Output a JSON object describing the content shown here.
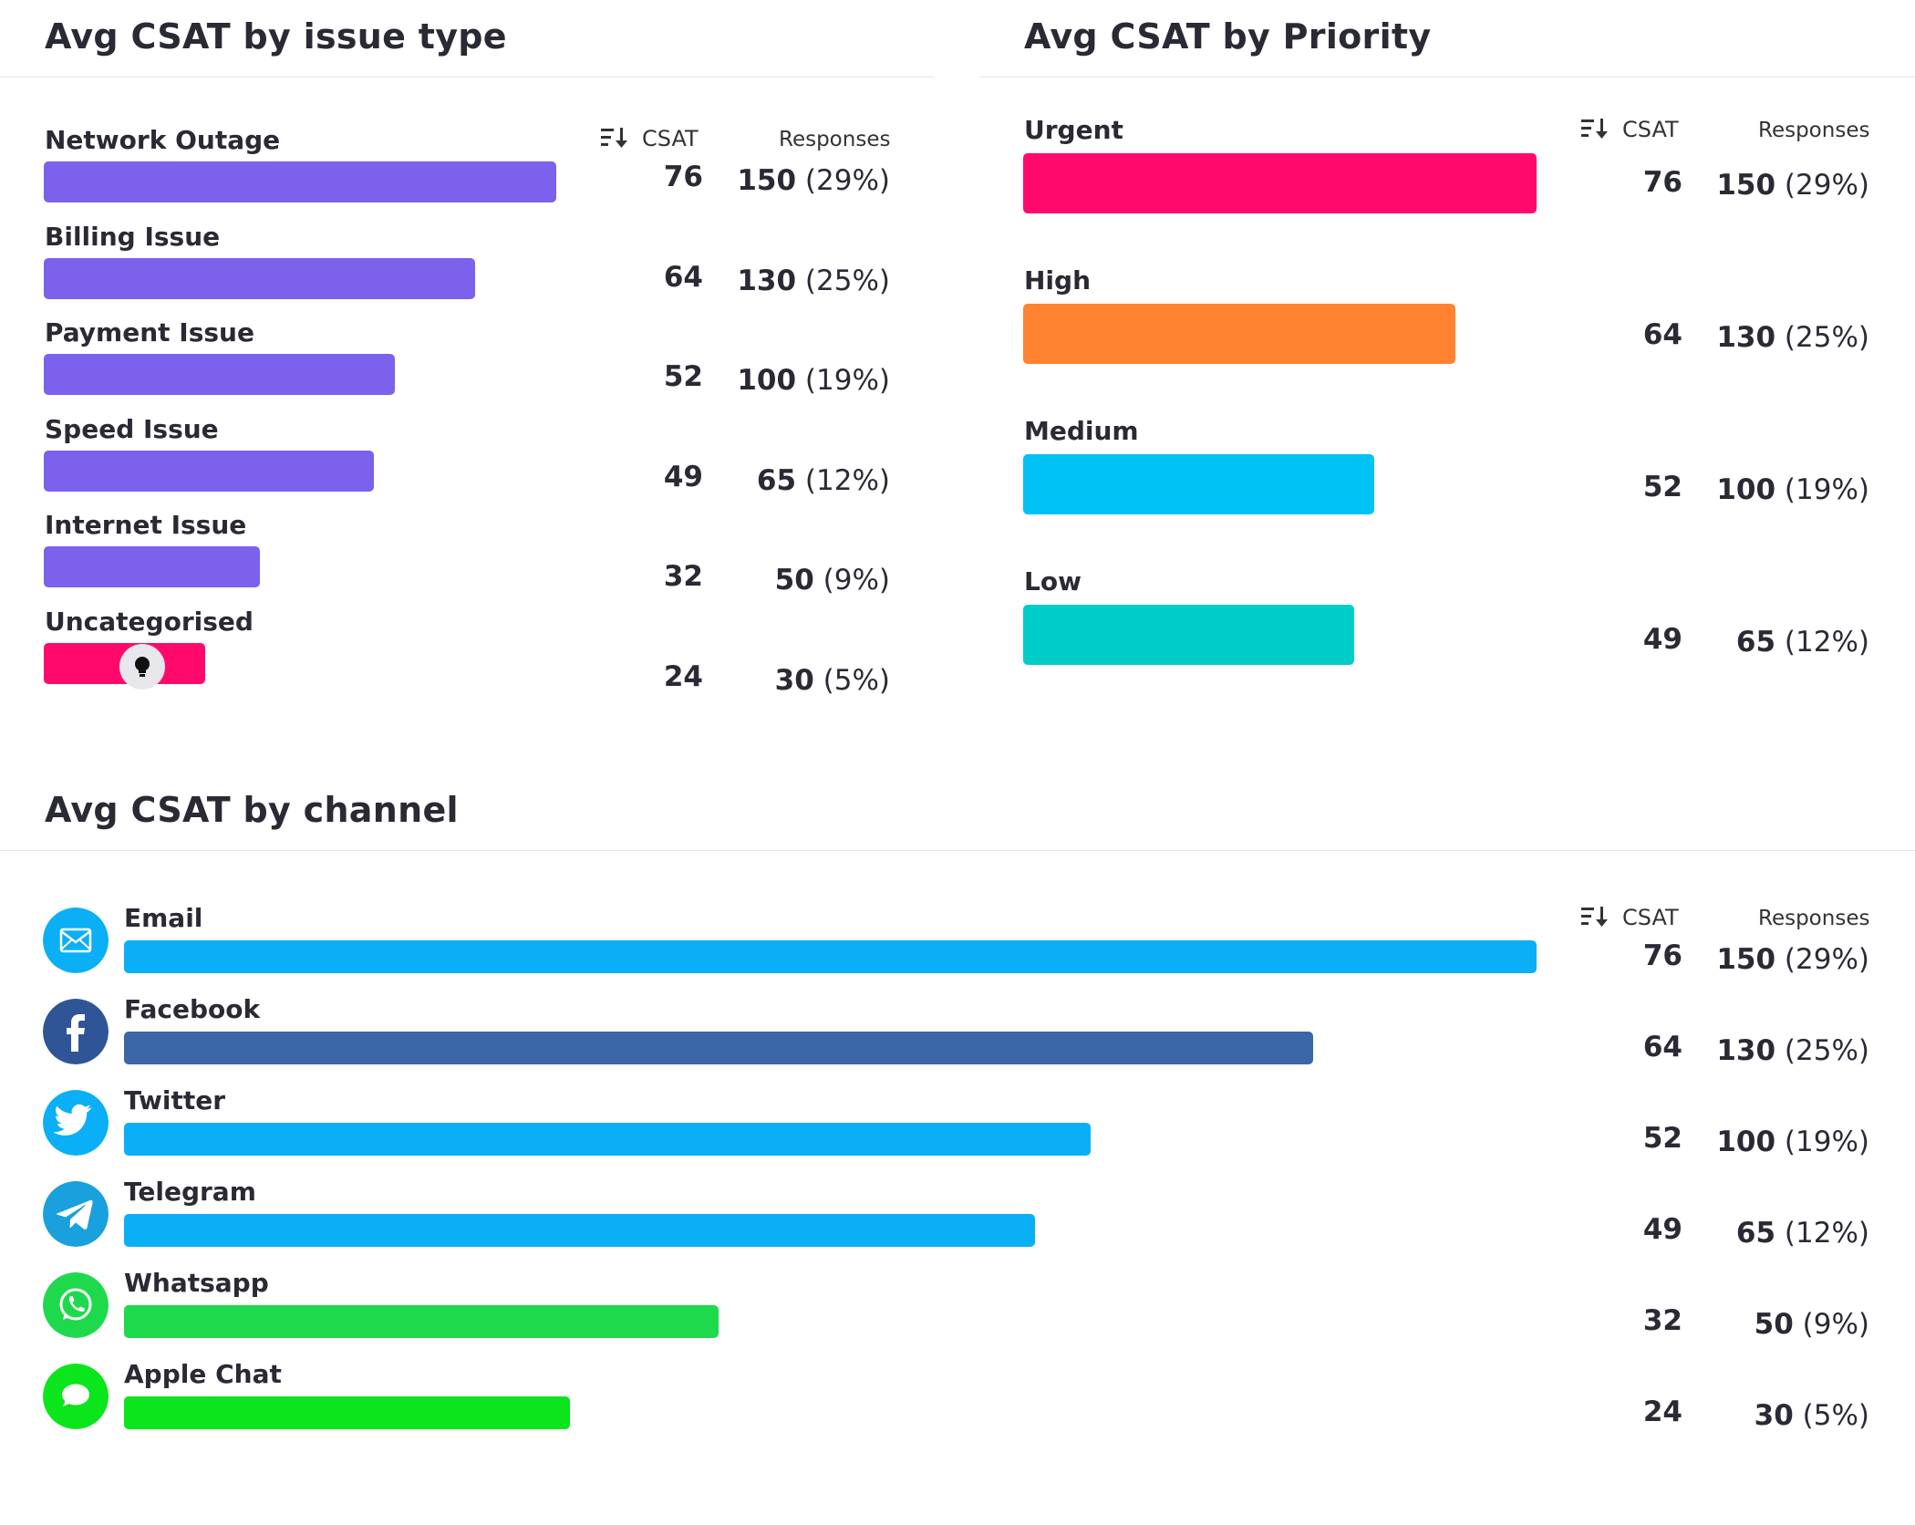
{
  "issue_panel": {
    "title": "Avg CSAT by issue type",
    "csat_header": "CSAT",
    "responses_header": "Responses",
    "max_csat": 76,
    "rows": [
      {
        "label": "Network Outage",
        "csat": "76",
        "count": "150",
        "pct": "(29%)",
        "color": "#7B61EC"
      },
      {
        "label": "Billing Issue",
        "csat": "64",
        "count": "130",
        "pct": "(25%)",
        "color": "#7B61EC"
      },
      {
        "label": "Payment Issue",
        "csat": "52",
        "count": "100",
        "pct": "(19%)",
        "color": "#7B61EC"
      },
      {
        "label": "Speed Issue",
        "csat": "49",
        "count": "65",
        "pct": "(12%)",
        "color": "#7B61EC"
      },
      {
        "label": "Internet Issue",
        "csat": "32",
        "count": "50",
        "pct": "(9%)",
        "color": "#7B61EC"
      },
      {
        "label": "Uncategorised",
        "csat": "24",
        "count": "30",
        "pct": "(5%)",
        "color": "#FF0A6C"
      }
    ]
  },
  "priority_panel": {
    "title": "Avg CSAT by Priority",
    "csat_header": "CSAT",
    "responses_header": "Responses",
    "max_csat": 76,
    "rows": [
      {
        "label": "Urgent",
        "csat": "76",
        "count": "150",
        "pct": "(29%)",
        "color": "#FF0A6C"
      },
      {
        "label": "High",
        "csat": "64",
        "count": "130",
        "pct": "(25%)",
        "color": "#FF8330"
      },
      {
        "label": "Medium",
        "csat": "52",
        "count": "100",
        "pct": "(19%)",
        "color": "#00C2F5"
      },
      {
        "label": "Low",
        "csat": "49",
        "count": "65",
        "pct": "(12%)",
        "color": "#00CDC8"
      }
    ]
  },
  "channel_panel": {
    "title": "Avg CSAT by channel",
    "csat_header": "CSAT",
    "responses_header": "Responses",
    "max_csat": 76,
    "rows": [
      {
        "label": "Email",
        "csat": "76",
        "count": "150",
        "pct": "(29%)",
        "color": "#0AAFF5",
        "icon": "email-icon",
        "icon_color": "#0AAFF5"
      },
      {
        "label": "Facebook",
        "csat": "64",
        "count": "130",
        "pct": "(25%)",
        "color": "#3B66A8",
        "icon": "facebook-icon",
        "icon_color": "#2F5597"
      },
      {
        "label": "Twitter",
        "csat": "52",
        "count": "100",
        "pct": "(19%)",
        "color": "#0AAFF5",
        "icon": "twitter-icon",
        "icon_color": "#0AAFF5"
      },
      {
        "label": "Telegram",
        "csat": "49",
        "count": "65",
        "pct": "(12%)",
        "color": "#0AAFF5",
        "icon": "telegram-icon",
        "icon_color": "#1AA0DC"
      },
      {
        "label": "Whatsapp",
        "csat": "32",
        "count": "50",
        "pct": "(9%)",
        "color": "#1ED94C",
        "icon": "whatsapp-icon",
        "icon_color": "#1ED94C"
      },
      {
        "label": "Apple Chat",
        "csat": "24",
        "count": "30",
        "pct": "(5%)",
        "color": "#0AE51C",
        "icon": "apple-chat-icon",
        "icon_color": "#0AE51C"
      }
    ]
  },
  "chart_data": [
    {
      "type": "bar",
      "title": "Avg CSAT by issue type",
      "categories": [
        "Network Outage",
        "Billing Issue",
        "Payment Issue",
        "Speed Issue",
        "Internet Issue",
        "Uncategorised"
      ],
      "series": [
        {
          "name": "CSAT",
          "values": [
            76,
            64,
            52,
            49,
            32,
            24
          ]
        },
        {
          "name": "Responses",
          "values": [
            150,
            130,
            100,
            65,
            50,
            30
          ]
        }
      ],
      "response_share_percent": [
        29,
        25,
        19,
        12,
        9,
        5
      ]
    },
    {
      "type": "bar",
      "title": "Avg CSAT by Priority",
      "categories": [
        "Urgent",
        "High",
        "Medium",
        "Low"
      ],
      "series": [
        {
          "name": "CSAT",
          "values": [
            76,
            64,
            52,
            49
          ]
        },
        {
          "name": "Responses",
          "values": [
            150,
            130,
            100,
            65
          ]
        }
      ],
      "response_share_percent": [
        29,
        25,
        19,
        12
      ]
    },
    {
      "type": "bar",
      "title": "Avg CSAT by channel",
      "categories": [
        "Email",
        "Facebook",
        "Twitter",
        "Telegram",
        "Whatsapp",
        "Apple Chat"
      ],
      "series": [
        {
          "name": "CSAT",
          "values": [
            76,
            64,
            52,
            49,
            32,
            24
          ]
        },
        {
          "name": "Responses",
          "values": [
            150,
            130,
            100,
            65,
            50,
            30
          ]
        }
      ],
      "response_share_percent": [
        29,
        25,
        19,
        12,
        9,
        5
      ]
    }
  ]
}
